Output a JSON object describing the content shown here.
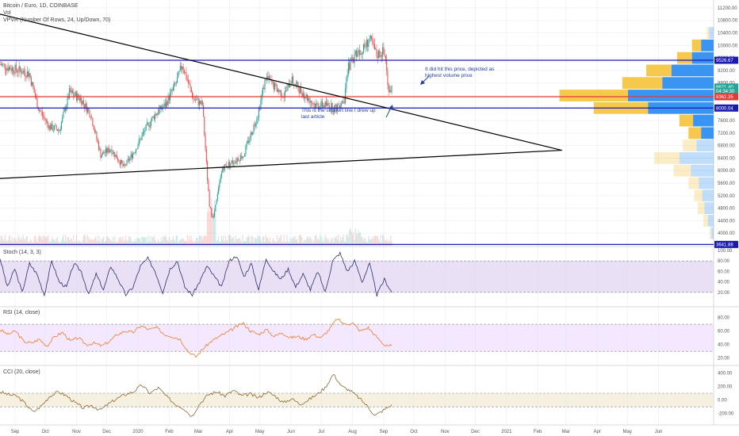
{
  "legend": {
    "main_line1": "Bitcoin / Euro, 1D, COINBASE",
    "main_line2": "Vol",
    "main_line3": "VPVR (Number Of Rows, 24, Up/Down, 70)",
    "stoch": "Stoch (14, 3, 3)",
    "rsi": "RSI (14, close)",
    "cci": "CCI (20, close)"
  },
  "annotations": {
    "top_line1": "It did hit this price, depicted as",
    "top_line2": "highest volume price",
    "bottom_line1": "This is the support line I drew up",
    "bottom_line2": "last article"
  },
  "colors": {
    "up": "#26a69a",
    "down": "#ef5350",
    "horizontal_line": "#1a1ab0",
    "resistance": "#e53935",
    "trendline": "#000000",
    "note": "#1e3fa8",
    "stoch_band": "#d9c6ee",
    "rsi_band": "#ead6fb",
    "cci_band": "#efe3c8",
    "vp_blue": "#2f8ef0",
    "vp_yellow": "#f5c542"
  },
  "chart_data": [
    {
      "type": "candlestick",
      "title": "Bitcoin / Euro, 1D, COINBASE",
      "x_ticks": [
        "Sep",
        "Oct",
        "Nov",
        "Dec",
        "2020",
        "Feb",
        "Mar",
        "Apr",
        "May",
        "Jun",
        "Jul",
        "Aug",
        "Sep",
        "Oct",
        "Nov",
        "Dec",
        "2021",
        "Feb",
        "Mar",
        "Apr",
        "May",
        "Jun"
      ],
      "y_ticks": [
        4000,
        4400,
        4800,
        5200,
        5600,
        6000,
        6400,
        6800,
        7200,
        7600,
        8000,
        8400,
        8800,
        9200,
        9600,
        10000,
        10400,
        10800,
        11200
      ],
      "ylim": [
        3600,
        11300
      ],
      "price_tags": [
        {
          "label": "9526.67",
          "value": 9526.67,
          "color": "#1a1ab0"
        },
        {
          "label": "8671.40",
          "value": 8671.4,
          "color": "#26a69a"
        },
        {
          "label": "04:34:30",
          "value": 8535,
          "color": "#26a69a"
        },
        {
          "label": "8362.35",
          "value": 8362.35,
          "color": "#e53935"
        },
        {
          "label": "8000.04",
          "value": 8000.04,
          "color": "#1a1ab0"
        },
        {
          "label": "3641.88",
          "value": 3641.88,
          "color": "#1a1ab0"
        }
      ],
      "horizontal_lines": [
        {
          "value": 9526.67,
          "color": "#1a1ab0"
        },
        {
          "value": 8362.35,
          "color": "#e53935"
        },
        {
          "value": 8000.04,
          "color": "#1a1ab0"
        },
        {
          "value": 3641.88,
          "color": "#1a1ab0"
        }
      ],
      "trendlines": [
        {
          "from": {
            "date": "2019-08-17",
            "price": 11000
          },
          "to": {
            "date": "2021-02-25",
            "price": 6650
          }
        },
        {
          "from": {
            "date": "2019-08-17",
            "price": 5750
          },
          "to": {
            "date": "2021-02-25",
            "price": 6650
          }
        }
      ],
      "close_path": [
        [
          "2019-08-17",
          9400
        ],
        [
          "2019-08-25",
          9300
        ],
        [
          "2019-09-05",
          9200
        ],
        [
          "2019-09-15",
          9100
        ],
        [
          "2019-09-24",
          8000
        ],
        [
          "2019-10-05",
          7400
        ],
        [
          "2019-10-15",
          7300
        ],
        [
          "2019-10-25",
          8500
        ],
        [
          "2019-11-05",
          8300
        ],
        [
          "2019-11-15",
          7800
        ],
        [
          "2019-11-25",
          6500
        ],
        [
          "2019-12-05",
          6700
        ],
        [
          "2019-12-18",
          6100
        ],
        [
          "2019-12-28",
          6600
        ],
        [
          "2020-01-08",
          7300
        ],
        [
          "2020-01-18",
          7800
        ],
        [
          "2020-01-28",
          8100
        ],
        [
          "2020-02-08",
          8800
        ],
        [
          "2020-02-14",
          9400
        ],
        [
          "2020-02-25",
          8300
        ],
        [
          "2020-03-05",
          8100
        ],
        [
          "2020-03-12",
          4800
        ],
        [
          "2020-03-16",
          4500
        ],
        [
          "2020-03-25",
          6100
        ],
        [
          "2020-04-05",
          6300
        ],
        [
          "2020-04-15",
          6500
        ],
        [
          "2020-04-29",
          7800
        ],
        [
          "2020-05-07",
          9000
        ],
        [
          "2020-05-15",
          8700
        ],
        [
          "2020-05-25",
          8400
        ],
        [
          "2020-06-01",
          8900
        ],
        [
          "2020-06-15",
          8400
        ],
        [
          "2020-06-25",
          8100
        ],
        [
          "2020-07-05",
          8100
        ],
        [
          "2020-07-15",
          8000
        ],
        [
          "2020-07-24",
          8300
        ],
        [
          "2020-07-28",
          9300
        ],
        [
          "2020-08-05",
          9800
        ],
        [
          "2020-08-12",
          9900
        ],
        [
          "2020-08-18",
          10200
        ],
        [
          "2020-08-25",
          9700
        ],
        [
          "2020-08-31",
          9800
        ],
        [
          "2020-09-03",
          9600
        ],
        [
          "2020-09-05",
          8700
        ],
        [
          "2020-09-08",
          8600
        ],
        [
          "2020-09-09",
          8671
        ]
      ],
      "volume_profile": [
        {
          "price": 10400,
          "up": 8,
          "down": 4
        },
        {
          "price": 10000,
          "up": 22,
          "down": 16
        },
        {
          "price": 9600,
          "up": 38,
          "down": 26
        },
        {
          "price": 9200,
          "up": 74,
          "down": 44
        },
        {
          "price": 8800,
          "up": 90,
          "down": 70
        },
        {
          "price": 8400,
          "up": 150,
          "down": 120
        },
        {
          "price": 8000,
          "up": 115,
          "down": 95
        },
        {
          "price": 7600,
          "up": 36,
          "down": 24
        },
        {
          "price": 7200,
          "up": 22,
          "down": 22
        },
        {
          "price": 6800,
          "up": 30,
          "down": 24
        },
        {
          "price": 6400,
          "up": 60,
          "down": 44
        },
        {
          "price": 6000,
          "up": 40,
          "down": 30
        },
        {
          "price": 5600,
          "up": 26,
          "down": 18
        },
        {
          "price": 5200,
          "up": 20,
          "down": 14
        },
        {
          "price": 4800,
          "up": 16,
          "down": 12
        },
        {
          "price": 4400,
          "up": 10,
          "down": 8
        },
        {
          "price": 4000,
          "up": 4,
          "down": 3
        }
      ]
    },
    {
      "type": "line",
      "title": "Stoch (14, 3, 3)",
      "y_ticks": [
        20,
        40,
        60,
        80,
        100
      ],
      "ylim": [
        0,
        100
      ],
      "bands": [
        20,
        80
      ],
      "series": [
        {
          "color": "#2a2e6e",
          "values": [
            85,
            30,
            65,
            20,
            75,
            55,
            15,
            80,
            40,
            30,
            75,
            60,
            15,
            55,
            25,
            70,
            45,
            15,
            30,
            70,
            85,
            60,
            20,
            65,
            80,
            30,
            15,
            40,
            70,
            50,
            30,
            80,
            90,
            50,
            75,
            25,
            85,
            60,
            45,
            65,
            30,
            55,
            25,
            60,
            20,
            80,
            95,
            60,
            80,
            40,
            75,
            15,
            45,
            20
          ]
        }
      ]
    },
    {
      "type": "line",
      "title": "RSI (14, close)",
      "y_ticks": [
        20,
        40,
        60,
        80
      ],
      "ylim": [
        15,
        90
      ],
      "bands": [
        30,
        70
      ],
      "series": [
        {
          "color": "#f07b2c",
          "values": [
            62,
            55,
            60,
            45,
            42,
            48,
            38,
            52,
            58,
            45,
            50,
            40,
            42,
            38,
            45,
            55,
            60,
            58,
            68,
            62,
            65,
            55,
            52,
            48,
            30,
            22,
            35,
            45,
            52,
            58,
            65,
            72,
            60,
            55,
            62,
            52,
            58,
            50,
            52,
            48,
            55,
            50,
            62,
            78,
            70,
            72,
            60,
            65,
            52,
            40,
            38
          ]
        }
      ]
    },
    {
      "type": "line",
      "title": "CCI (20, close)",
      "y_ticks": [
        -200,
        0,
        200,
        400
      ],
      "ylim": [
        -320,
        450
      ],
      "bands": [
        -100,
        100
      ],
      "series": [
        {
          "color": "#8b6b2f",
          "values": [
            120,
            80,
            60,
            -50,
            -180,
            -80,
            60,
            120,
            60,
            -40,
            -120,
            -80,
            -150,
            -60,
            20,
            80,
            120,
            220,
            100,
            180,
            50,
            -60,
            -120,
            -240,
            -50,
            80,
            120,
            60,
            140,
            60,
            90,
            30,
            120,
            60,
            -40,
            20,
            -60,
            0,
            80,
            180,
            380,
            200,
            140,
            40,
            -80,
            -230,
            -150,
            -70
          ]
        }
      ]
    }
  ],
  "time_axis": [
    "Sep",
    "Oct",
    "Nov",
    "Dec",
    "2020",
    "Feb",
    "Mar",
    "Apr",
    "May",
    "Jun",
    "Jul",
    "Aug",
    "Sep",
    "Oct",
    "Nov",
    "Dec",
    "2021",
    "Feb",
    "Mar",
    "Apr",
    "May",
    "Jun"
  ]
}
